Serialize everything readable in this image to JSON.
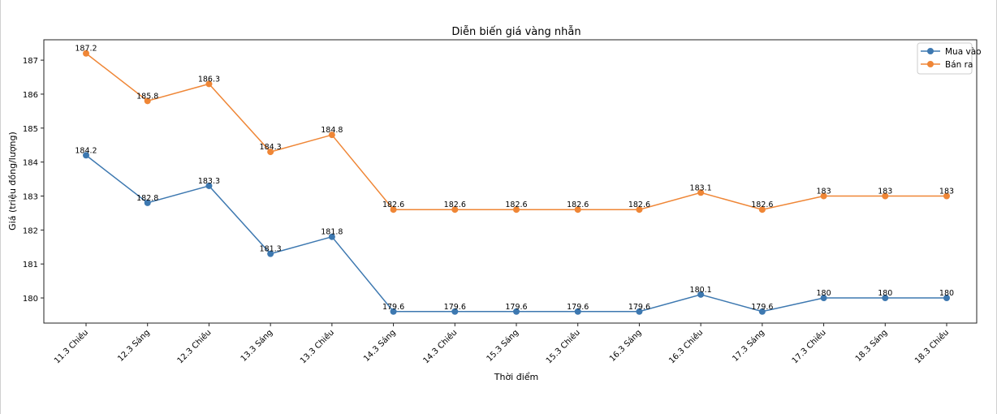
{
  "chart_data": {
    "type": "line",
    "title": "Diễn biến giá vàng nhẫn",
    "xlabel": "Thời điểm",
    "ylabel": "Giá (triệu đồng/lượng)",
    "categories": [
      "11.3 Chiều",
      "12.3 Sáng",
      "12.3 Chiều",
      "13.3 Sáng",
      "13.3 Chiều",
      "14.3 Sáng",
      "14.3 Chiều",
      "15.3 Sáng",
      "15.3 Chiều",
      "16.3 Sáng",
      "16.3 Chiều",
      "17.3 Sáng",
      "17.3 Chiều",
      "18.3 Sáng",
      "18.3 Chiều"
    ],
    "ylim": [
      179.26,
      187.6
    ],
    "yticks": [
      180,
      181,
      182,
      183,
      184,
      185,
      186,
      187
    ],
    "grid": false,
    "legend": "top-right",
    "series": [
      {
        "name": "Mua vào",
        "color": "#3d78b0",
        "values": [
          184.2,
          182.8,
          183.3,
          181.3,
          181.8,
          179.6,
          179.6,
          179.6,
          179.6,
          179.6,
          180.1,
          179.6,
          180,
          180,
          180
        ]
      },
      {
        "name": "Bán ra",
        "color": "#ef8636",
        "values": [
          187.2,
          185.8,
          186.3,
          184.3,
          184.8,
          182.6,
          182.6,
          182.6,
          182.6,
          182.6,
          183.1,
          182.6,
          183,
          183,
          183
        ]
      }
    ]
  }
}
